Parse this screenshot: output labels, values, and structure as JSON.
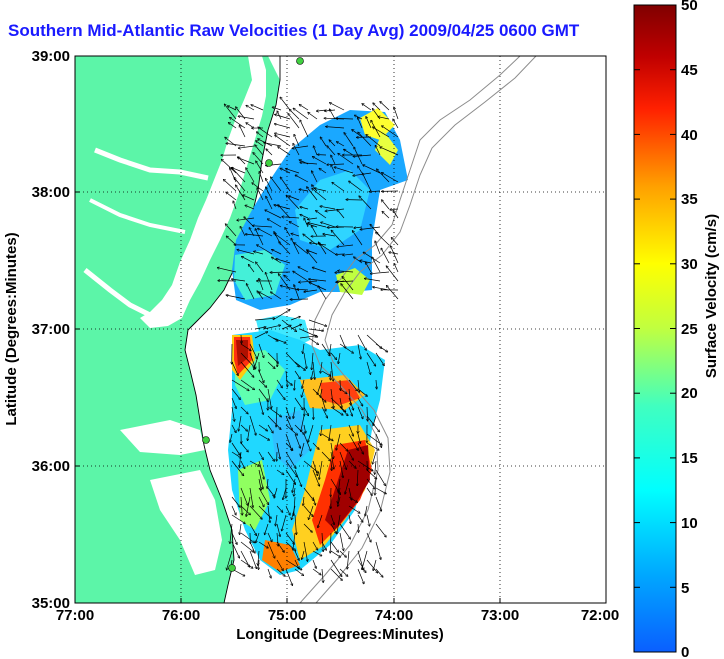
{
  "title": "Southern Mid-Atlantic Raw Velocities (1 Day Avg) 2009/04/25 0600 GMT",
  "map": {
    "xlabel": "Longitude (Degrees:Minutes)",
    "ylabel": "Latitude (Degrees:Minutes)",
    "x_ticks": [
      "77:00",
      "76:00",
      "75:00",
      "74:00",
      "73:00",
      "72:00"
    ],
    "y_ticks": [
      "39:00",
      "38:00",
      "37:00",
      "36:00",
      "35:00"
    ],
    "land_color": "#5cf5a8",
    "grid": "dotted"
  },
  "colorbar": {
    "label": "Surface Velocity (cm/s)",
    "ticks": [
      "0",
      "5",
      "10",
      "15",
      "20",
      "25",
      "30",
      "35",
      "40",
      "45",
      "50"
    ],
    "min": 0,
    "max": 50,
    "colormap": "jet"
  }
}
